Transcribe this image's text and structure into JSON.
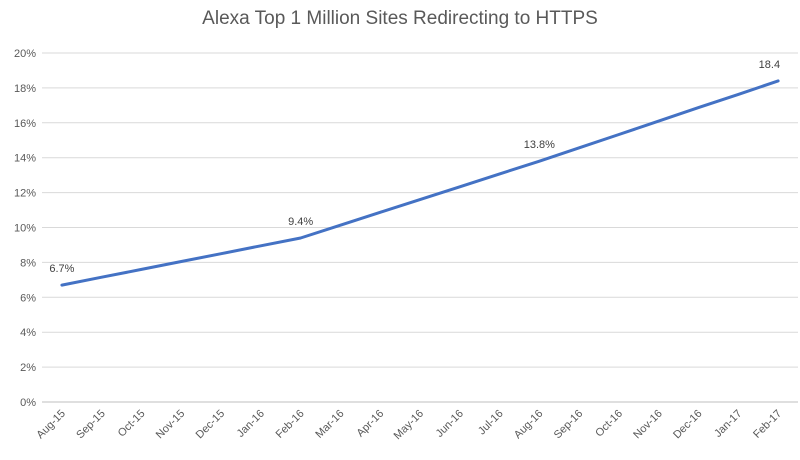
{
  "chart_data": {
    "type": "line",
    "title": "Alexa Top 1 Million Sites Redirecting to HTTPS",
    "xlabel": "",
    "ylabel": "",
    "categories": [
      "Aug-15",
      "Sep-15",
      "Oct-15",
      "Nov-15",
      "Dec-15",
      "Jan-16",
      "Feb-16",
      "Mar-16",
      "Apr-16",
      "May-16",
      "Jun-16",
      "Jul-16",
      "Aug-16",
      "Sep-16",
      "Oct-16",
      "Nov-16",
      "Dec-16",
      "Jan-17",
      "Feb-17"
    ],
    "series": [
      {
        "values": [
          6.7,
          7.15,
          7.6,
          8.05,
          8.5,
          8.95,
          9.4,
          10.13,
          10.87,
          11.6,
          12.33,
          13.07,
          13.8,
          14.57,
          15.33,
          16.1,
          16.87,
          17.63,
          18.4
        ],
        "color": "#4472c4"
      }
    ],
    "data_labels": [
      {
        "index": 0,
        "text": "6.7%"
      },
      {
        "index": 6,
        "text": "9.4%"
      },
      {
        "index": 12,
        "text": "13.8%"
      },
      {
        "index": 18,
        "text": "18.4"
      }
    ],
    "y_ticks": [
      "0%",
      "2%",
      "4%",
      "6%",
      "8%",
      "10%",
      "12%",
      "14%",
      "16%",
      "18%",
      "20%"
    ],
    "ylim": [
      0,
      20
    ],
    "grid": true,
    "legend": "none"
  }
}
